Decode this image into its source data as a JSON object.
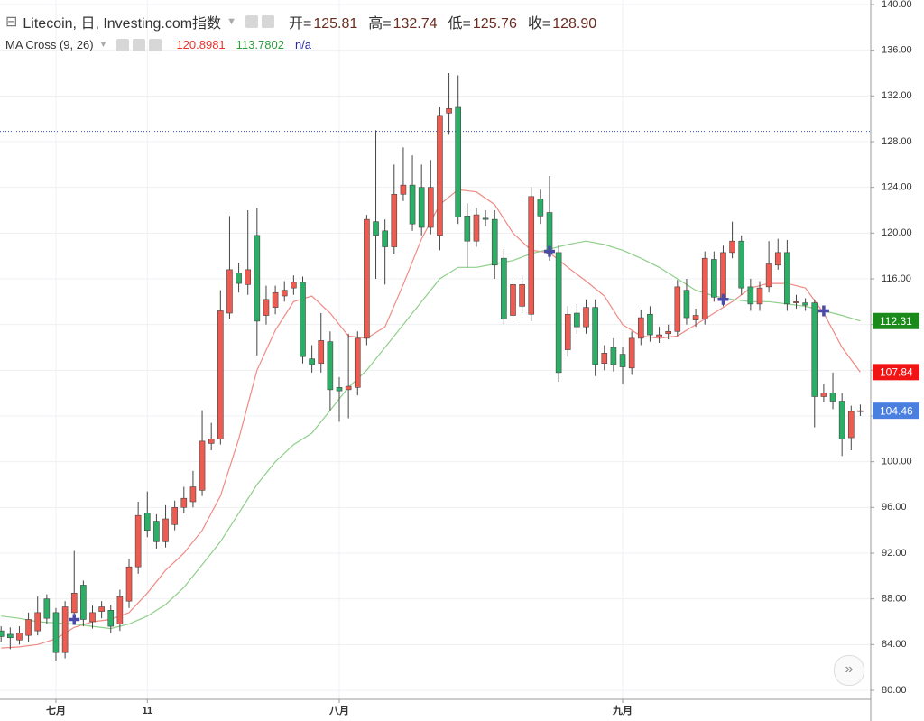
{
  "chart_data": {
    "type": "candlestick",
    "title": "Litecoin, 日, Investing.com指数",
    "legend": {
      "labels": [
        "开=",
        "高=",
        "低=",
        "收="
      ],
      "values": [
        125.81,
        132.74,
        125.76,
        128.9
      ],
      "value_labels": [
        "125.81",
        "132.74",
        "125.76",
        "128.90"
      ]
    },
    "indicator": {
      "name": "MA Cross (9, 26)",
      "values": [
        120.8981,
        113.7802
      ],
      "colors": [
        "#e8332a",
        "#2e9b3a"
      ],
      "status": "n/a"
    },
    "categories": [
      null,
      null,
      null,
      null,
      null,
      null,
      "七月",
      null,
      null,
      null,
      null,
      null,
      null,
      null,
      null,
      null,
      "11",
      null,
      null,
      null,
      null,
      null,
      null,
      null,
      null,
      null,
      null,
      null,
      null,
      null,
      null,
      null,
      null,
      null,
      null,
      null,
      null,
      "八月",
      null,
      null,
      null,
      null,
      null,
      null,
      null,
      null,
      null,
      null,
      null,
      null,
      null,
      null,
      null,
      null,
      null,
      null,
      null,
      null,
      null,
      null,
      null,
      null,
      null,
      null,
      null,
      null,
      null,
      null,
      "九月",
      null,
      null,
      null,
      null,
      null,
      null,
      null,
      null,
      null,
      null,
      null,
      null,
      null,
      null,
      null,
      null,
      null,
      null,
      null,
      null,
      null,
      null,
      null,
      null,
      null,
      null
    ],
    "open": [
      85.2,
      84.9,
      84.4,
      84.8,
      85.2,
      88.0,
      86.8,
      83.3,
      86.8,
      89.2,
      86.0,
      86.9,
      87.0,
      85.8,
      87.8,
      90.8,
      95.5,
      94.8,
      93.0,
      94.5,
      96.0,
      96.5,
      97.5,
      101.6,
      102.0,
      113.0,
      116.5,
      115.5,
      119.8,
      112.8,
      113.5,
      114.5,
      115.2,
      115.7,
      109.0,
      108.6,
      110.5,
      106.5,
      106.3,
      106.5,
      110.8,
      121.0,
      120.2,
      118.8,
      123.4,
      124.2,
      124.0,
      120.5,
      119.8,
      130.5,
      131.0,
      121.5,
      119.3,
      121.3,
      121.2,
      117.8,
      112.8,
      113.6,
      112.9,
      123.0,
      121.8,
      118.3,
      109.8,
      113.0,
      111.8,
      113.5,
      108.6,
      110.0,
      109.4,
      108.2,
      110.8,
      112.9,
      110.9,
      111.2,
      111.4,
      115.0,
      112.4,
      112.5,
      117.7,
      114.2,
      118.3,
      119.3,
      115.3,
      113.8,
      115.3,
      117.2,
      118.3,
      113.9,
      113.9,
      113.9,
      105.7,
      106.0,
      105.3,
      102.1,
      104.4
    ],
    "high": [
      85.6,
      85.5,
      85.6,
      86.8,
      88.2,
      88.4,
      87.2,
      87.8,
      92.2,
      89.6,
      87.4,
      87.8,
      87.5,
      88.8,
      91.5,
      96.5,
      97.4,
      95.4,
      96.2,
      96.6,
      97.8,
      99.2,
      104.5,
      103.4,
      115.0,
      121.5,
      117.4,
      122.0,
      122.2,
      115.4,
      115.4,
      115.8,
      116.3,
      116.2,
      110.2,
      113.0,
      111.4,
      107.4,
      111.2,
      111.4,
      121.6,
      129.0,
      121.2,
      126.0,
      127.5,
      126.8,
      126.0,
      126.4,
      131.0,
      134.0,
      133.8,
      122.6,
      122.2,
      122.0,
      122.0,
      118.6,
      116.2,
      116.3,
      124.0,
      123.8,
      125.0,
      119.0,
      113.6,
      113.8,
      114.2,
      114.2,
      110.2,
      110.8,
      110.0,
      111.4,
      113.3,
      113.6,
      111.8,
      112.0,
      115.9,
      116.0,
      113.4,
      118.4,
      118.4,
      118.9,
      121.0,
      119.8,
      116.0,
      115.8,
      119.3,
      119.5,
      119.4,
      114.6,
      114.3,
      114.2,
      106.8,
      107.8,
      106.0,
      104.9,
      105.0
    ],
    "low": [
      84.2,
      83.6,
      84.0,
      84.2,
      84.8,
      85.8,
      82.6,
      82.8,
      86.2,
      85.6,
      85.4,
      86.3,
      85.0,
      85.2,
      87.2,
      90.2,
      93.4,
      92.4,
      92.5,
      94.0,
      95.5,
      96.0,
      97.0,
      101.0,
      101.5,
      112.5,
      114.8,
      114.6,
      109.3,
      112.0,
      112.9,
      114.0,
      114.6,
      108.6,
      107.8,
      107.8,
      104.5,
      103.5,
      103.8,
      105.8,
      110.2,
      116.0,
      115.5,
      118.2,
      122.8,
      120.2,
      119.8,
      119.9,
      118.5,
      128.6,
      120.8,
      117.0,
      118.8,
      120.6,
      116.0,
      112.0,
      112.2,
      113.0,
      112.3,
      120.8,
      117.6,
      107.0,
      109.2,
      111.2,
      111.2,
      107.5,
      108.0,
      107.9,
      106.8,
      107.6,
      110.2,
      110.5,
      110.4,
      110.7,
      111.0,
      112.0,
      111.8,
      112.0,
      114.0,
      113.6,
      117.8,
      114.6,
      113.2,
      113.2,
      114.8,
      116.8,
      113.2,
      113.4,
      113.2,
      103.0,
      105.2,
      104.6,
      100.5,
      101.0,
      104.0
    ],
    "close": [
      84.7,
      84.6,
      85.0,
      86.2,
      86.8,
      86.3,
      83.3,
      87.3,
      88.5,
      86.2,
      86.8,
      87.3,
      85.6,
      88.2,
      90.8,
      95.3,
      94.0,
      93.0,
      95.0,
      96.0,
      96.8,
      97.8,
      101.8,
      102.0,
      113.2,
      116.8,
      115.6,
      116.8,
      112.3,
      114.2,
      114.8,
      115.0,
      115.7,
      109.2,
      108.5,
      110.6,
      106.3,
      106.2,
      106.6,
      110.8,
      121.2,
      119.8,
      118.8,
      123.4,
      124.2,
      120.8,
      120.5,
      124.0,
      130.3,
      130.9,
      121.4,
      119.3,
      121.6,
      121.2,
      117.2,
      112.5,
      115.5,
      115.5,
      123.2,
      121.5,
      118.2,
      107.8,
      112.9,
      111.8,
      113.5,
      108.5,
      109.5,
      108.5,
      108.3,
      110.8,
      112.6,
      111.1,
      111.1,
      111.4,
      115.3,
      112.6,
      112.8,
      117.8,
      114.4,
      118.3,
      119.3,
      115.2,
      113.8,
      115.2,
      117.3,
      118.3,
      113.8,
      114.0,
      113.7,
      105.7,
      106.0,
      105.3,
      102.0,
      104.4,
      104.46
    ],
    "up_color": "#ee5b50",
    "down_color": "#2bae66",
    "ma": [
      {
        "color": "#f08a84",
        "x": [
          0,
          2,
          4,
          6,
          8,
          10,
          12,
          14,
          16,
          18,
          20,
          22,
          24,
          26,
          28,
          30,
          32,
          34,
          36,
          38,
          40,
          42,
          44,
          46,
          48,
          50,
          52,
          54,
          56,
          58,
          60,
          62,
          64,
          66,
          68,
          70,
          72,
          74,
          76,
          78,
          80,
          82,
          84,
          86,
          88,
          90,
          92,
          94
        ],
        "values": [
          83.7,
          83.8,
          84,
          84.5,
          85.5,
          86,
          86.2,
          86.8,
          88.5,
          90.5,
          92,
          94,
          97,
          102,
          108,
          111.5,
          114,
          114.5,
          113,
          111,
          110.8,
          111.8,
          115.5,
          119.5,
          122.5,
          123.8,
          123.6,
          122.5,
          120,
          118.5,
          118.3,
          117,
          115.8,
          114.5,
          112,
          111,
          110.8,
          111,
          112,
          113,
          114,
          115.2,
          115.6,
          115.6,
          115.2,
          113,
          110,
          107.84
        ],
        "tag_color": "#f01414"
      },
      {
        "color": "#8fcf8a",
        "x": [
          0,
          2,
          4,
          6,
          8,
          10,
          12,
          14,
          16,
          18,
          20,
          22,
          24,
          26,
          28,
          30,
          32,
          34,
          36,
          38,
          40,
          42,
          44,
          46,
          48,
          50,
          52,
          54,
          56,
          58,
          60,
          62,
          64,
          66,
          68,
          70,
          72,
          74,
          76,
          78,
          80,
          82,
          84,
          86,
          88,
          90,
          92,
          94
        ],
        "values": [
          86.5,
          86.3,
          86,
          85.9,
          85.8,
          85.6,
          85.4,
          85.8,
          86.5,
          87.5,
          89,
          91,
          93,
          95.5,
          98,
          100,
          101.5,
          102.5,
          104.5,
          106.5,
          108,
          110,
          112,
          114,
          116,
          117,
          117,
          117.3,
          117.6,
          118.2,
          118.6,
          119,
          119.3,
          119,
          118.5,
          117.8,
          117,
          116,
          115,
          114.5,
          114.2,
          114,
          114,
          113.8,
          113.6,
          113.2,
          112.8,
          112.31
        ],
        "tag_color": "#1a8a1a"
      }
    ],
    "price_tag_color": "#4a7fe0",
    "crosses": [
      {
        "x": 8,
        "y": 86.2
      },
      {
        "x": 60,
        "y": 118.4
      },
      {
        "x": 79,
        "y": 114.2
      },
      {
        "x": 90,
        "y": 113.2
      }
    ],
    "cross_color": "#4b4aa8",
    "ylim": [
      80,
      140
    ],
    "yticks": [
      {
        "value": 80,
        "label": "80.00"
      },
      {
        "value": 84,
        "label": "84.00"
      },
      {
        "value": 88,
        "label": "88.00"
      },
      {
        "value": 92,
        "label": "92.00"
      },
      {
        "value": 96,
        "label": "96.00"
      },
      {
        "value": 100,
        "label": "100.00"
      },
      {
        "value": 104,
        "label": "104.00"
      },
      {
        "value": 108,
        "label": "108.00"
      },
      {
        "value": 112,
        "label": "112.00"
      },
      {
        "value": 116,
        "label": "116.00"
      },
      {
        "value": 120,
        "label": "120.00"
      },
      {
        "value": 124,
        "label": "124.00"
      },
      {
        "value": 128,
        "label": "128.00"
      },
      {
        "value": 132,
        "label": "132.00"
      },
      {
        "value": 136,
        "label": "136.00"
      },
      {
        "value": 140,
        "label": "140.00"
      }
    ],
    "grid": true
  }
}
